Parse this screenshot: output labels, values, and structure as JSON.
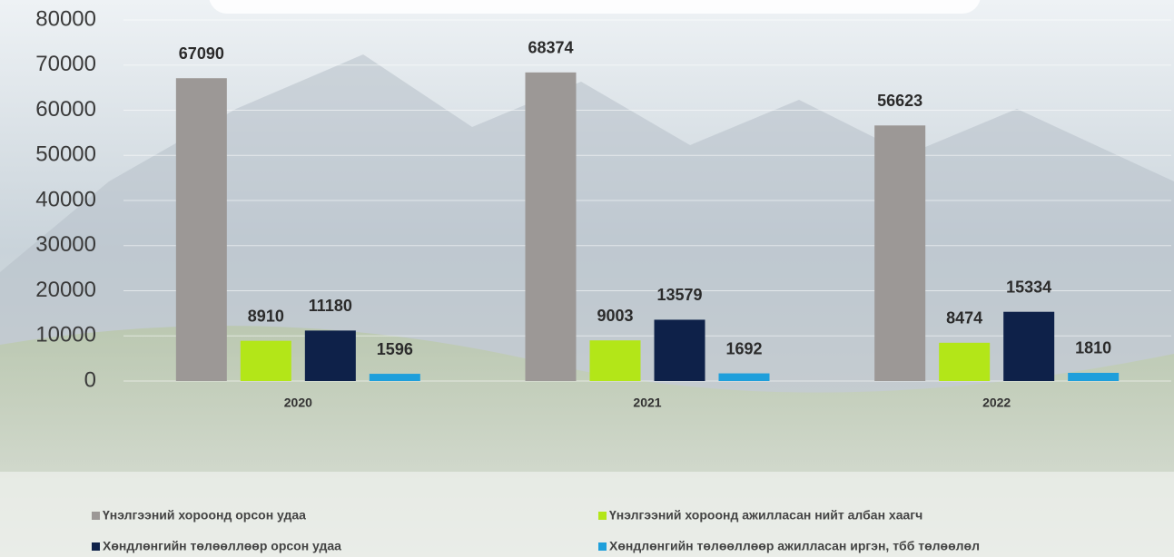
{
  "chart_data": {
    "type": "bar",
    "categories": [
      "2020",
      "2021",
      "2022"
    ],
    "series": [
      {
        "name": "Үнэлгээний хороонд орсон удаа",
        "color": "#9c9896",
        "values": [
          67090,
          68374,
          56623
        ]
      },
      {
        "name": "Үнэлгээний хороонд ажилласан нийт албан хаагч",
        "color": "#b3e618",
        "values": [
          8910,
          9003,
          8474
        ]
      },
      {
        "name": "Хөндлөнгийн төлөөллөөр орсон удаа",
        "color": "#0e2149",
        "values": [
          11180,
          13579,
          15334
        ]
      },
      {
        "name": "Хөндлөнгийн төлөөллөөр ажилласан иргэн, тбб төлөөлөл",
        "color": "#1f9fdb",
        "values": [
          1596,
          1692,
          1810
        ]
      }
    ],
    "ylim": [
      0,
      80000
    ],
    "yticks": [
      0,
      10000,
      20000,
      30000,
      40000,
      50000,
      60000,
      70000,
      80000
    ],
    "grid": true,
    "legend": "bottom"
  }
}
